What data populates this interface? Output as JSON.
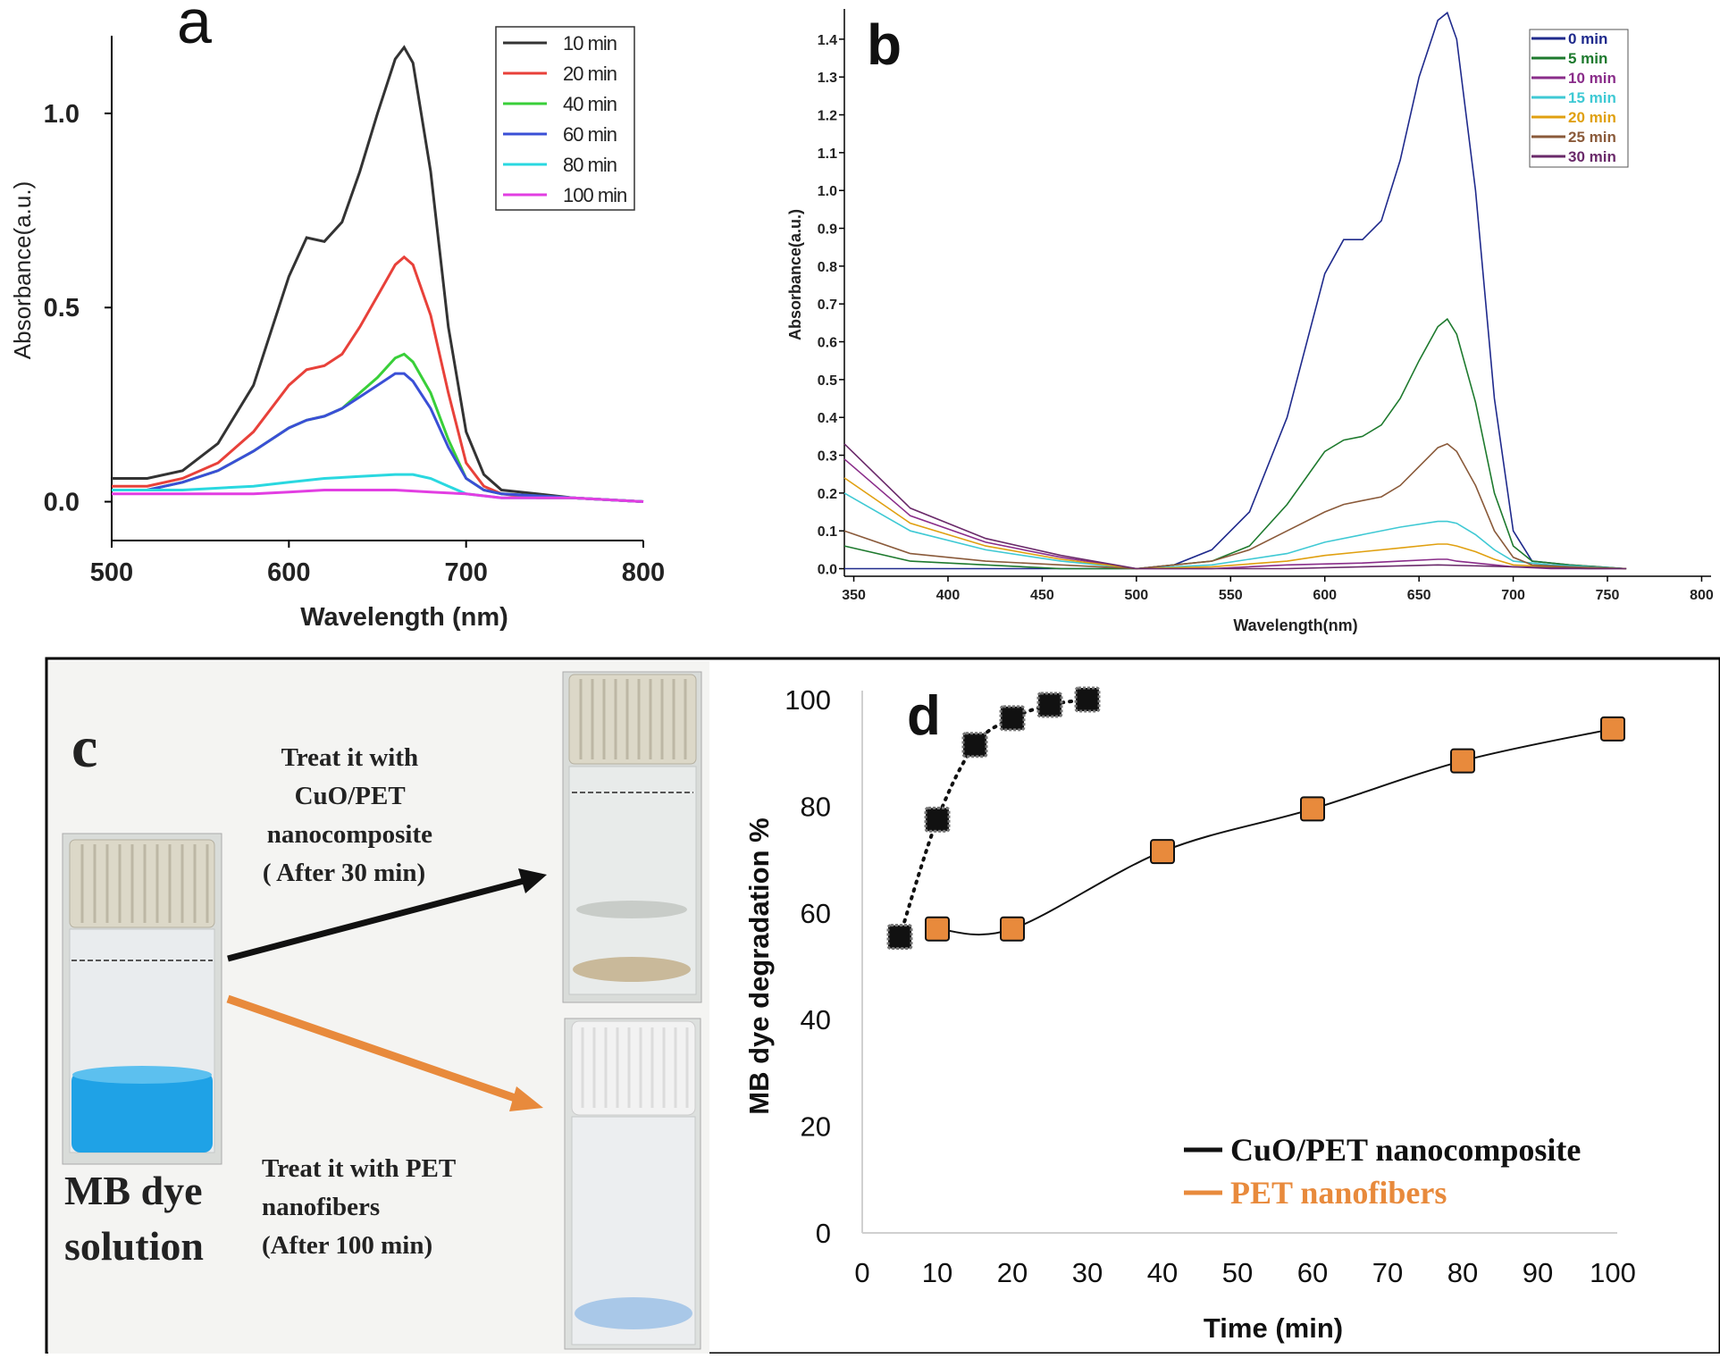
{
  "panels": {
    "a": "a",
    "b": "b",
    "c": "c",
    "d": "d"
  },
  "photo": {
    "label_line1": "MB dye",
    "label_line2": "solution",
    "treat1_lines": [
      "Treat it with",
      "CuO/PET",
      "nanocomposite",
      "( After 30 min)"
    ],
    "treat2_lines": [
      "Treat it with PET",
      "nanofibers",
      "(After 100 min)"
    ],
    "colors": {
      "dye": "#1fa2e6",
      "arrow1": "#111111",
      "arrow2": "#e88a3c"
    }
  },
  "chart_data": [
    {
      "id": "a",
      "type": "line",
      "title": "a",
      "xlabel": "Wavelength (nm)",
      "ylabel": "Absorbance(a.u.)",
      "xlim": [
        500,
        800
      ],
      "ylim": [
        -0.1,
        1.2
      ],
      "xticks": [
        500,
        600,
        700,
        800
      ],
      "yticks": [
        0.0,
        0.5,
        1.0
      ],
      "ytick_labels": [
        "0.0",
        "0.5",
        "1.0"
      ],
      "legend_position": "top-right",
      "series": [
        {
          "name": "10 min",
          "color": "#333333",
          "x": [
            500,
            520,
            540,
            560,
            580,
            600,
            610,
            620,
            630,
            640,
            650,
            660,
            665,
            670,
            680,
            690,
            700,
            710,
            720,
            740,
            760,
            800
          ],
          "y": [
            0.06,
            0.06,
            0.08,
            0.15,
            0.3,
            0.58,
            0.68,
            0.67,
            0.72,
            0.85,
            1.0,
            1.14,
            1.17,
            1.13,
            0.85,
            0.45,
            0.18,
            0.07,
            0.03,
            0.02,
            0.01,
            0.0
          ]
        },
        {
          "name": "20 min",
          "color": "#e8413a",
          "x": [
            500,
            520,
            540,
            560,
            580,
            600,
            610,
            620,
            630,
            640,
            650,
            660,
            665,
            670,
            680,
            690,
            700,
            710,
            720,
            740,
            760,
            800
          ],
          "y": [
            0.04,
            0.04,
            0.06,
            0.1,
            0.18,
            0.3,
            0.34,
            0.35,
            0.38,
            0.45,
            0.53,
            0.61,
            0.63,
            0.61,
            0.48,
            0.28,
            0.1,
            0.04,
            0.02,
            0.01,
            0.01,
            0.0
          ]
        },
        {
          "name": "40 min",
          "color": "#39cf39",
          "x": [
            500,
            520,
            540,
            560,
            580,
            600,
            610,
            620,
            630,
            640,
            650,
            660,
            665,
            670,
            680,
            690,
            700,
            710,
            720,
            760,
            800
          ],
          "y": [
            0.03,
            0.03,
            0.05,
            0.08,
            0.13,
            0.19,
            0.21,
            0.22,
            0.24,
            0.28,
            0.32,
            0.37,
            0.38,
            0.36,
            0.28,
            0.16,
            0.06,
            0.03,
            0.02,
            0.01,
            0.0
          ]
        },
        {
          "name": "60 min",
          "color": "#3a4fd6",
          "x": [
            500,
            520,
            540,
            560,
            580,
            600,
            610,
            620,
            630,
            640,
            650,
            660,
            665,
            670,
            680,
            690,
            700,
            710,
            720,
            760,
            800
          ],
          "y": [
            0.03,
            0.03,
            0.05,
            0.08,
            0.13,
            0.19,
            0.21,
            0.22,
            0.24,
            0.27,
            0.3,
            0.33,
            0.33,
            0.31,
            0.24,
            0.14,
            0.06,
            0.03,
            0.02,
            0.01,
            0.0
          ]
        },
        {
          "name": "80 min",
          "color": "#2ad8e0",
          "x": [
            500,
            540,
            580,
            600,
            620,
            640,
            660,
            670,
            680,
            690,
            700,
            720,
            760,
            800
          ],
          "y": [
            0.03,
            0.03,
            0.04,
            0.05,
            0.06,
            0.065,
            0.07,
            0.07,
            0.06,
            0.04,
            0.02,
            0.01,
            0.01,
            0.0
          ]
        },
        {
          "name": "100 min",
          "color": "#e23ee2",
          "x": [
            500,
            540,
            580,
            600,
            620,
            640,
            660,
            680,
            700,
            720,
            760,
            800
          ],
          "y": [
            0.02,
            0.02,
            0.02,
            0.025,
            0.03,
            0.03,
            0.03,
            0.025,
            0.02,
            0.01,
            0.01,
            0.0
          ]
        }
      ]
    },
    {
      "id": "b",
      "type": "line",
      "title": "b",
      "xlabel": "Wavelength(nm)",
      "ylabel": "Absorbance(a.u.)",
      "xlim": [
        345,
        805
      ],
      "ylim": [
        -0.02,
        1.48
      ],
      "xticks": [
        350,
        400,
        450,
        500,
        550,
        600,
        650,
        700,
        750,
        800
      ],
      "yticks": [
        0.0,
        0.1,
        0.2,
        0.3,
        0.4,
        0.5,
        0.6,
        0.7,
        0.8,
        0.9,
        1.0,
        1.1,
        1.2,
        1.3,
        1.4
      ],
      "ytick_labels": [
        "0.0",
        "0.1",
        "0.2",
        "0.3",
        "0.4",
        "0.5",
        "0.6",
        "0.7",
        "0.8",
        "0.9",
        "1.0",
        "1.1",
        "1.2",
        "1.3",
        "1.4"
      ],
      "legend_position": "top-right",
      "series": [
        {
          "name": "0 min",
          "color": "#1f2a8c",
          "x": [
            345,
            400,
            450,
            500,
            520,
            540,
            560,
            580,
            600,
            610,
            620,
            630,
            640,
            650,
            660,
            665,
            670,
            680,
            690,
            700,
            710,
            730,
            760
          ],
          "y": [
            0.0,
            0.0,
            0.0,
            0.0,
            0.01,
            0.05,
            0.15,
            0.4,
            0.78,
            0.87,
            0.87,
            0.92,
            1.08,
            1.3,
            1.45,
            1.47,
            1.4,
            1.0,
            0.45,
            0.1,
            0.02,
            0.01,
            0.0
          ]
        },
        {
          "name": "5 min",
          "color": "#1e7a2e",
          "x": [
            345,
            380,
            420,
            460,
            500,
            540,
            560,
            580,
            600,
            610,
            620,
            630,
            640,
            650,
            660,
            665,
            670,
            680,
            690,
            700,
            710,
            730,
            760
          ],
          "y": [
            0.06,
            0.02,
            0.01,
            0.0,
            0.0,
            0.02,
            0.06,
            0.17,
            0.31,
            0.34,
            0.35,
            0.38,
            0.45,
            0.55,
            0.64,
            0.66,
            0.62,
            0.44,
            0.2,
            0.06,
            0.02,
            0.01,
            0.0
          ]
        },
        {
          "name": "10 min",
          "color": "#8a2d8a",
          "x": [
            345,
            380,
            420,
            460,
            500,
            540,
            580,
            620,
            640,
            660,
            665,
            670,
            680,
            690,
            700,
            720,
            760
          ],
          "y": [
            0.29,
            0.14,
            0.07,
            0.03,
            0.0,
            0.0,
            0.01,
            0.015,
            0.02,
            0.025,
            0.025,
            0.02,
            0.015,
            0.01,
            0.005,
            0.0,
            0.0
          ]
        },
        {
          "name": "15 min",
          "color": "#3fc9d4",
          "x": [
            345,
            380,
            420,
            460,
            500,
            540,
            580,
            600,
            620,
            640,
            660,
            665,
            670,
            680,
            690,
            700,
            720,
            760
          ],
          "y": [
            0.2,
            0.1,
            0.05,
            0.02,
            0.0,
            0.01,
            0.04,
            0.07,
            0.09,
            0.11,
            0.125,
            0.125,
            0.12,
            0.09,
            0.05,
            0.02,
            0.01,
            0.0
          ]
        },
        {
          "name": "20 min",
          "color": "#e0a010",
          "x": [
            345,
            380,
            420,
            460,
            500,
            540,
            580,
            600,
            620,
            640,
            660,
            665,
            670,
            680,
            690,
            700,
            720,
            760
          ],
          "y": [
            0.24,
            0.12,
            0.06,
            0.025,
            0.0,
            0.005,
            0.02,
            0.035,
            0.045,
            0.055,
            0.065,
            0.065,
            0.06,
            0.045,
            0.025,
            0.01,
            0.005,
            0.0
          ]
        },
        {
          "name": "25 min",
          "color": "#8a5a3a",
          "x": [
            345,
            380,
            420,
            460,
            500,
            540,
            560,
            580,
            600,
            610,
            620,
            630,
            640,
            650,
            660,
            665,
            670,
            680,
            690,
            700,
            710,
            730,
            760
          ],
          "y": [
            0.1,
            0.04,
            0.02,
            0.01,
            0.0,
            0.02,
            0.05,
            0.1,
            0.15,
            0.17,
            0.18,
            0.19,
            0.22,
            0.27,
            0.32,
            0.33,
            0.31,
            0.22,
            0.1,
            0.03,
            0.01,
            0.005,
            0.0
          ]
        },
        {
          "name": "30 min",
          "color": "#6a2a6a",
          "x": [
            345,
            380,
            420,
            460,
            500,
            540,
            580,
            620,
            660,
            700,
            740,
            760
          ],
          "y": [
            0.33,
            0.16,
            0.08,
            0.035,
            0.0,
            0.0,
            0.0,
            0.005,
            0.01,
            0.005,
            0.0,
            0.0
          ]
        }
      ]
    },
    {
      "id": "d",
      "type": "scatter",
      "title": "d",
      "xlabel": "Time (min)",
      "ylabel": "MB dye degradation %",
      "xlim": [
        0,
        100
      ],
      "ylim": [
        0,
        100
      ],
      "xticks": [
        0,
        10,
        20,
        30,
        40,
        50,
        60,
        70,
        80,
        90,
        100
      ],
      "yticks": [
        0,
        20,
        40,
        60,
        80,
        100
      ],
      "legend_position": "bottom-right",
      "series": [
        {
          "name": "CuO/PET nanocomposite",
          "color": "#111111",
          "line": "dotted",
          "x": [
            5,
            10,
            15,
            20,
            25,
            30
          ],
          "y": [
            55.5,
            77.5,
            91.5,
            96.5,
            99,
            100
          ]
        },
        {
          "name": "PET nanofibers",
          "color": "#e88a3c",
          "line": "solid",
          "x": [
            10,
            20,
            40,
            60,
            80,
            100
          ],
          "y": [
            57,
            57,
            71.5,
            79.5,
            88.5,
            94.5
          ]
        }
      ]
    }
  ]
}
